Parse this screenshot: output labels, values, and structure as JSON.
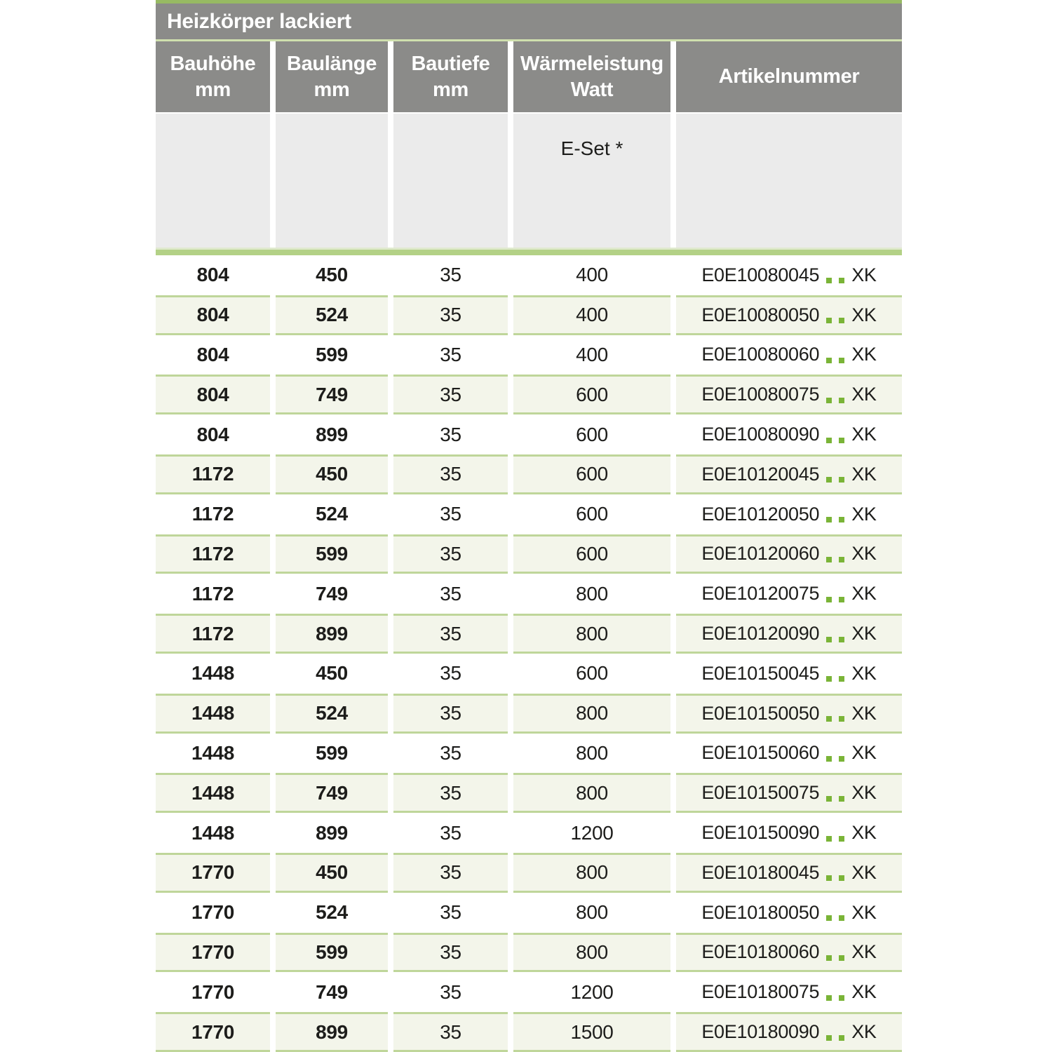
{
  "table": {
    "title": "Heizkörper lackiert",
    "columns": [
      {
        "label": "Bauhöhe",
        "unit": "mm"
      },
      {
        "label": "Baulänge",
        "unit": "mm"
      },
      {
        "label": "Bautiefe",
        "unit": "mm"
      },
      {
        "label": "Wärmeleistung",
        "unit": "Watt"
      },
      {
        "label": "Artikelnummer",
        "unit": ""
      }
    ],
    "subheader": {
      "e_set_label": "E-Set *"
    },
    "artikel_separator": "..",
    "rows": [
      {
        "bauhoehe": "804",
        "baulaenge": "450",
        "bautiefe": "35",
        "watt": "400",
        "artikel_prefix": "E0E10080045",
        "artikel_suffix": "XK"
      },
      {
        "bauhoehe": "804",
        "baulaenge": "524",
        "bautiefe": "35",
        "watt": "400",
        "artikel_prefix": "E0E10080050",
        "artikel_suffix": "XK"
      },
      {
        "bauhoehe": "804",
        "baulaenge": "599",
        "bautiefe": "35",
        "watt": "400",
        "artikel_prefix": "E0E10080060",
        "artikel_suffix": "XK"
      },
      {
        "bauhoehe": "804",
        "baulaenge": "749",
        "bautiefe": "35",
        "watt": "600",
        "artikel_prefix": "E0E10080075",
        "artikel_suffix": "XK"
      },
      {
        "bauhoehe": "804",
        "baulaenge": "899",
        "bautiefe": "35",
        "watt": "600",
        "artikel_prefix": "E0E10080090",
        "artikel_suffix": "XK"
      },
      {
        "bauhoehe": "1172",
        "baulaenge": "450",
        "bautiefe": "35",
        "watt": "600",
        "artikel_prefix": "E0E10120045",
        "artikel_suffix": "XK"
      },
      {
        "bauhoehe": "1172",
        "baulaenge": "524",
        "bautiefe": "35",
        "watt": "600",
        "artikel_prefix": "E0E10120050",
        "artikel_suffix": "XK"
      },
      {
        "bauhoehe": "1172",
        "baulaenge": "599",
        "bautiefe": "35",
        "watt": "600",
        "artikel_prefix": "E0E10120060",
        "artikel_suffix": "XK"
      },
      {
        "bauhoehe": "1172",
        "baulaenge": "749",
        "bautiefe": "35",
        "watt": "800",
        "artikel_prefix": "E0E10120075",
        "artikel_suffix": "XK"
      },
      {
        "bauhoehe": "1172",
        "baulaenge": "899",
        "bautiefe": "35",
        "watt": "800",
        "artikel_prefix": "E0E10120090",
        "artikel_suffix": "XK"
      },
      {
        "bauhoehe": "1448",
        "baulaenge": "450",
        "bautiefe": "35",
        "watt": "600",
        "artikel_prefix": "E0E10150045",
        "artikel_suffix": "XK"
      },
      {
        "bauhoehe": "1448",
        "baulaenge": "524",
        "bautiefe": "35",
        "watt": "800",
        "artikel_prefix": "E0E10150050",
        "artikel_suffix": "XK"
      },
      {
        "bauhoehe": "1448",
        "baulaenge": "599",
        "bautiefe": "35",
        "watt": "800",
        "artikel_prefix": "E0E10150060",
        "artikel_suffix": "XK"
      },
      {
        "bauhoehe": "1448",
        "baulaenge": "749",
        "bautiefe": "35",
        "watt": "800",
        "artikel_prefix": "E0E10150075",
        "artikel_suffix": "XK"
      },
      {
        "bauhoehe": "1448",
        "baulaenge": "899",
        "bautiefe": "35",
        "watt": "1200",
        "artikel_prefix": "E0E10150090",
        "artikel_suffix": "XK"
      },
      {
        "bauhoehe": "1770",
        "baulaenge": "450",
        "bautiefe": "35",
        "watt": "800",
        "artikel_prefix": "E0E10180045",
        "artikel_suffix": "XK"
      },
      {
        "bauhoehe": "1770",
        "baulaenge": "524",
        "bautiefe": "35",
        "watt": "800",
        "artikel_prefix": "E0E10180050",
        "artikel_suffix": "XK"
      },
      {
        "bauhoehe": "1770",
        "baulaenge": "599",
        "bautiefe": "35",
        "watt": "800",
        "artikel_prefix": "E0E10180060",
        "artikel_suffix": "XK"
      },
      {
        "bauhoehe": "1770",
        "baulaenge": "749",
        "bautiefe": "35",
        "watt": "1200",
        "artikel_prefix": "E0E10180075",
        "artikel_suffix": "XK"
      },
      {
        "bauhoehe": "1770",
        "baulaenge": "899",
        "bautiefe": "35",
        "watt": "1500",
        "artikel_prefix": "E0E10180090",
        "artikel_suffix": "XK"
      }
    ]
  },
  "colors": {
    "top_line": "#97ba63",
    "header_bg": "#8b8b89",
    "header_text": "#ffffff",
    "title_underline": "#cfe0ae",
    "subheader_bg": "#ebebeb",
    "pre_band_line": "#dfe9cd",
    "band": "#b3d186",
    "row_alt_bg": "#f3f5ea",
    "row_border": "#bfd69a",
    "text": "#1d1d1b",
    "dot_green": "#7ab437"
  }
}
